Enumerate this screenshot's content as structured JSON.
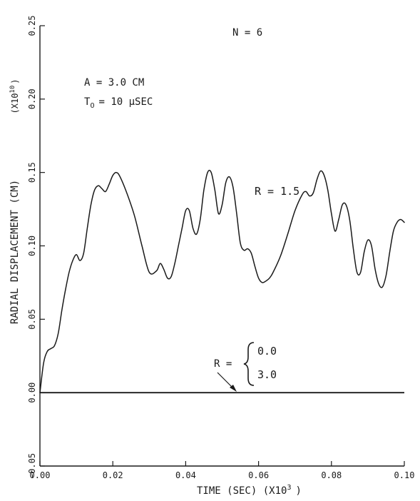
{
  "chart_data": {
    "type": "line",
    "title": "N = 6",
    "xlabel": "TIME (SEC) (X10",
    "xlabel_exp": "3",
    "xlabel_end": ")",
    "ylabel": "RADIAL DISPLACEMENT (CM)",
    "ylabel_scale": "(X10",
    "ylabel_scale_exp": "10",
    "ylabel_scale_end": ")",
    "xlim": [
      0.0,
      0.1
    ],
    "ylim": [
      -0.05,
      0.25
    ],
    "x_ticks": [
      "0.00",
      "0.02",
      "0.04",
      "0.06",
      "0.08",
      "0.10"
    ],
    "y_ticks": [
      "-0.05",
      "0.00",
      "0.05",
      "0.10",
      "0.15",
      "0.20",
      "0.25"
    ],
    "x_tick_values": [
      0.0,
      0.02,
      0.04,
      0.06,
      0.08,
      0.1
    ],
    "y_tick_values": [
      -0.05,
      0.0,
      0.05,
      0.1,
      0.15,
      0.2,
      0.25
    ],
    "params": {
      "a_label": "A = 3.0 CM",
      "t_label_main": "T",
      "t_label_sub": "O",
      "t_label_rest": "= 10 μSEC"
    },
    "annotations": {
      "r15_label": "R = 1.5",
      "r0_label_prefix": "R =",
      "r0_value_1": "0.0",
      "r0_value_2": "3.0"
    },
    "series": [
      {
        "name": "R = 1.5",
        "x": [
          0.0,
          0.001,
          0.002,
          0.003,
          0.004,
          0.005,
          0.006,
          0.007,
          0.008,
          0.009,
          0.01,
          0.011,
          0.012,
          0.013,
          0.014,
          0.015,
          0.016,
          0.017,
          0.018,
          0.019,
          0.02,
          0.021,
          0.022,
          0.024,
          0.026,
          0.028,
          0.03,
          0.032,
          0.033,
          0.034,
          0.035,
          0.036,
          0.037,
          0.038,
          0.039,
          0.04,
          0.041,
          0.042,
          0.043,
          0.044,
          0.045,
          0.046,
          0.047,
          0.048,
          0.049,
          0.05,
          0.051,
          0.052,
          0.053,
          0.054,
          0.055,
          0.056,
          0.057,
          0.058,
          0.059,
          0.06,
          0.061,
          0.062,
          0.063,
          0.064,
          0.066,
          0.068,
          0.07,
          0.072,
          0.073,
          0.074,
          0.075,
          0.076,
          0.077,
          0.078,
          0.079,
          0.08,
          0.081,
          0.082,
          0.083,
          0.084,
          0.085,
          0.086,
          0.087,
          0.088,
          0.089,
          0.09,
          0.091,
          0.092,
          0.093,
          0.094,
          0.095,
          0.096,
          0.097,
          0.098,
          0.099,
          0.1
        ],
        "y": [
          0.0,
          0.02,
          0.028,
          0.03,
          0.032,
          0.04,
          0.056,
          0.07,
          0.082,
          0.09,
          0.094,
          0.09,
          0.095,
          0.112,
          0.128,
          0.138,
          0.141,
          0.139,
          0.137,
          0.142,
          0.148,
          0.15,
          0.147,
          0.135,
          0.12,
          0.1,
          0.082,
          0.083,
          0.088,
          0.084,
          0.078,
          0.079,
          0.088,
          0.1,
          0.112,
          0.124,
          0.124,
          0.112,
          0.108,
          0.118,
          0.138,
          0.15,
          0.15,
          0.138,
          0.122,
          0.128,
          0.143,
          0.147,
          0.14,
          0.122,
          0.102,
          0.097,
          0.098,
          0.095,
          0.086,
          0.078,
          0.075,
          0.076,
          0.078,
          0.082,
          0.093,
          0.108,
          0.124,
          0.135,
          0.137,
          0.134,
          0.136,
          0.145,
          0.151,
          0.148,
          0.138,
          0.122,
          0.11,
          0.118,
          0.128,
          0.128,
          0.118,
          0.098,
          0.082,
          0.082,
          0.096,
          0.104,
          0.1,
          0.084,
          0.074,
          0.072,
          0.08,
          0.096,
          0.11,
          0.116,
          0.118,
          0.116
        ]
      },
      {
        "name": "R = 0.0, 3.0",
        "x": [
          0.0,
          0.1
        ],
        "y": [
          0.0,
          0.0
        ]
      }
    ],
    "grid": false
  }
}
